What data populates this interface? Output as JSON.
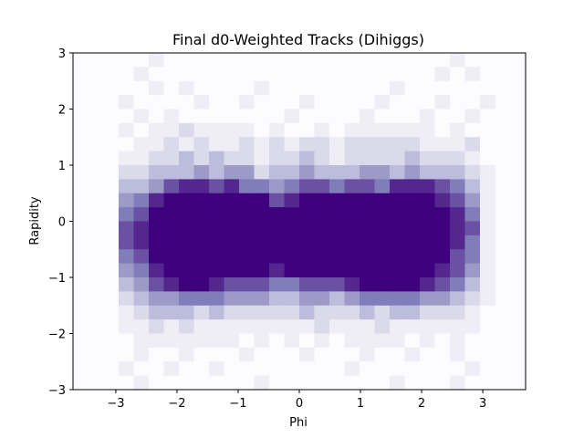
{
  "chart_data": {
    "type": "heatmap",
    "title": "Final d0-Weighted Tracks (Dihiggs)",
    "xlabel": "Phi",
    "ylabel": "Rapidity",
    "xlim": [
      -3.7,
      3.7
    ],
    "ylim": [
      -3,
      3
    ],
    "x_ticks": [
      -3,
      -2,
      -1,
      0,
      1,
      2,
      3
    ],
    "x_tick_labels": [
      "−3",
      "−2",
      "−1",
      "0",
      "1",
      "2",
      "3"
    ],
    "y_ticks": [
      -3,
      -2,
      -1,
      0,
      1,
      2,
      3
    ],
    "y_tick_labels": [
      "−3",
      "−2",
      "−1",
      "0",
      "1",
      "2",
      "3"
    ],
    "x_range": [
      -3.2,
      3.2
    ],
    "y_range": [
      -3,
      3
    ],
    "n_xbins": 26,
    "n_ybins": 24,
    "colormap": "Purples",
    "colormap_colors": [
      "#fcfbfd",
      "#efedf5",
      "#dadaeb",
      "#bcbddc",
      "#9e9ac8",
      "#807dba",
      "#6a51a3",
      "#54278f",
      "#3f007d"
    ],
    "grid": false,
    "counts": [
      [
        0,
        0,
        0,
        1,
        0,
        0,
        0,
        0,
        0,
        0,
        0,
        0,
        0,
        0,
        0,
        0,
        0,
        0,
        0,
        0,
        0,
        0,
        0,
        1,
        0,
        0
      ],
      [
        0,
        0,
        1,
        0,
        0,
        0,
        0,
        0,
        0,
        0,
        0,
        0,
        0,
        0,
        0,
        0,
        0,
        0,
        0,
        0,
        0,
        0,
        1,
        0,
        1,
        0
      ],
      [
        0,
        0,
        0,
        1,
        0,
        1,
        0,
        0,
        0,
        0,
        1,
        0,
        0,
        0,
        0,
        0,
        0,
        0,
        0,
        1,
        0,
        0,
        0,
        0,
        0,
        0
      ],
      [
        0,
        1,
        0,
        0,
        0,
        0,
        1,
        0,
        0,
        1,
        0,
        0,
        0,
        1,
        0,
        0,
        0,
        0,
        1,
        0,
        0,
        0,
        1,
        0,
        0,
        1
      ],
      [
        0,
        0,
        1,
        0,
        1,
        0,
        0,
        0,
        0,
        0,
        0,
        0,
        1,
        0,
        0,
        0,
        0,
        1,
        0,
        0,
        0,
        1,
        0,
        0,
        1,
        0
      ],
      [
        0,
        1,
        0,
        1,
        1,
        2,
        1,
        1,
        1,
        1,
        0,
        1,
        0,
        0,
        1,
        0,
        1,
        1,
        1,
        1,
        1,
        1,
        0,
        1,
        0,
        0
      ],
      [
        0,
        0,
        1,
        1,
        2,
        1,
        2,
        1,
        1,
        2,
        1,
        2,
        1,
        2,
        2,
        1,
        2,
        2,
        2,
        2,
        2,
        1,
        1,
        1,
        2,
        0
      ],
      [
        0,
        1,
        1,
        2,
        2,
        3,
        2,
        3,
        2,
        2,
        1,
        2,
        2,
        3,
        2,
        1,
        2,
        2,
        2,
        2,
        3,
        2,
        2,
        2,
        1,
        0
      ],
      [
        0,
        2,
        2,
        3,
        3,
        3,
        4,
        3,
        4,
        4,
        2,
        3,
        3,
        4,
        3,
        3,
        3,
        4,
        4,
        3,
        4,
        3,
        3,
        3,
        2,
        1
      ],
      [
        0,
        3,
        3,
        4,
        6,
        7,
        7,
        6,
        7,
        5,
        5,
        4,
        5,
        6,
        6,
        5,
        6,
        6,
        5,
        7,
        7,
        7,
        6,
        5,
        3,
        1
      ],
      [
        0,
        4,
        5,
        7,
        9,
        9,
        9,
        9,
        9,
        9,
        8,
        6,
        7,
        8,
        9,
        9,
        9,
        9,
        9,
        9,
        9,
        9,
        7,
        6,
        4,
        1
      ],
      [
        0,
        5,
        6,
        8,
        9,
        9,
        9,
        9,
        9,
        9,
        9,
        9,
        8,
        9,
        9,
        9,
        9,
        9,
        9,
        9,
        9,
        9,
        8,
        7,
        5,
        1
      ],
      [
        0,
        6,
        7,
        9,
        9,
        9,
        9,
        9,
        9,
        9,
        9,
        9,
        9,
        9,
        9,
        9,
        9,
        9,
        9,
        9,
        9,
        9,
        9,
        7,
        6,
        1
      ],
      [
        0,
        6,
        7,
        8,
        9,
        9,
        9,
        9,
        9,
        9,
        9,
        9,
        9,
        9,
        9,
        9,
        9,
        9,
        9,
        9,
        9,
        9,
        8,
        7,
        5,
        1
      ],
      [
        0,
        5,
        6,
        8,
        9,
        9,
        9,
        9,
        9,
        9,
        9,
        9,
        9,
        9,
        9,
        9,
        9,
        9,
        9,
        9,
        9,
        9,
        8,
        6,
        5,
        1
      ],
      [
        0,
        4,
        5,
        7,
        9,
        9,
        9,
        9,
        8,
        8,
        8,
        7,
        8,
        8,
        8,
        8,
        9,
        9,
        9,
        9,
        9,
        9,
        7,
        6,
        4,
        1
      ],
      [
        0,
        3,
        4,
        6,
        7,
        8,
        8,
        7,
        6,
        6,
        6,
        5,
        5,
        6,
        6,
        6,
        7,
        8,
        9,
        8,
        8,
        7,
        6,
        5,
        3,
        1
      ],
      [
        0,
        2,
        3,
        4,
        4,
        5,
        5,
        5,
        4,
        4,
        4,
        3,
        3,
        4,
        4,
        3,
        4,
        5,
        5,
        5,
        5,
        4,
        4,
        3,
        2,
        1
      ],
      [
        0,
        1,
        2,
        3,
        3,
        3,
        2,
        3,
        2,
        2,
        2,
        2,
        2,
        3,
        2,
        2,
        2,
        3,
        2,
        3,
        3,
        2,
        2,
        2,
        1,
        0
      ],
      [
        0,
        1,
        1,
        2,
        1,
        2,
        1,
        1,
        1,
        1,
        1,
        1,
        1,
        1,
        2,
        1,
        1,
        1,
        2,
        1,
        1,
        1,
        1,
        1,
        1,
        0
      ],
      [
        0,
        0,
        1,
        1,
        1,
        1,
        1,
        1,
        1,
        0,
        1,
        0,
        1,
        0,
        1,
        0,
        1,
        1,
        1,
        1,
        0,
        1,
        0,
        1,
        0,
        0
      ],
      [
        0,
        0,
        1,
        0,
        0,
        1,
        0,
        0,
        0,
        1,
        0,
        0,
        0,
        1,
        0,
        0,
        0,
        1,
        0,
        0,
        1,
        0,
        0,
        1,
        0,
        0
      ],
      [
        0,
        1,
        0,
        0,
        1,
        0,
        0,
        1,
        0,
        0,
        0,
        0,
        0,
        0,
        0,
        0,
        1,
        0,
        0,
        0,
        0,
        0,
        0,
        0,
        1,
        0
      ],
      [
        0,
        0,
        1,
        0,
        0,
        0,
        0,
        0,
        0,
        0,
        1,
        0,
        0,
        0,
        0,
        0,
        0,
        0,
        0,
        1,
        0,
        0,
        0,
        1,
        0,
        0
      ]
    ]
  }
}
